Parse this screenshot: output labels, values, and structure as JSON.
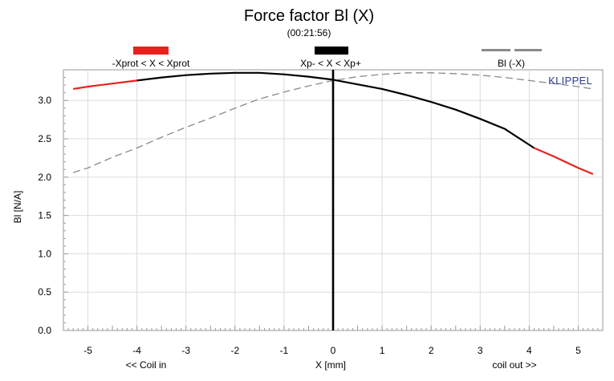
{
  "chart_data": {
    "type": "line",
    "title": "Force factor Bl (X)",
    "subtitle": "(00:21:56)",
    "brand": "KLIPPEL",
    "xlabel": "X [mm]",
    "xlabel_left": "<< Coil in",
    "xlabel_right": "coil out >>",
    "ylabel": "Bl [N/A]",
    "xlim": [
      -5.5,
      5.5
    ],
    "ylim": [
      0.0,
      3.4
    ],
    "xticks": [
      -5,
      -4,
      -3,
      -2,
      -1,
      0,
      1,
      2,
      3,
      4,
      5
    ],
    "yticks": [
      "0.0",
      "0.5",
      "1.0",
      "1.5",
      "2.0",
      "2.5",
      "3.0"
    ],
    "grid": true,
    "legend_position": "top",
    "legend": [
      {
        "label": "-Xprot < X < Xprot",
        "color": "#e8211d",
        "style": "solid"
      },
      {
        "label": "Xp- < X < Xp+",
        "color": "#000000",
        "style": "solid"
      },
      {
        "label": "Bl (-X)",
        "color": "#8a8a8a",
        "style": "dashed"
      }
    ],
    "series": [
      {
        "name": "-Xprot < X < Xprot",
        "color": "#e8211d",
        "style": "solid",
        "segments": [
          {
            "x": [
              -5.3,
              -5.0,
              -4.5,
              -4.0
            ],
            "y": [
              3.15,
              3.18,
              3.22,
              3.26
            ]
          },
          {
            "x": [
              4.1,
              4.5,
              5.0,
              5.3
            ],
            "y": [
              2.38,
              2.27,
              2.12,
              2.04
            ]
          }
        ]
      },
      {
        "name": "Xp- < X < Xp+",
        "color": "#000000",
        "style": "solid",
        "segments": [
          {
            "x": [
              -4.0,
              -3.5,
              -3.0,
              -2.5,
              -2.0,
              -1.5,
              -1.0,
              -0.5,
              0.0,
              0.5,
              1.0,
              1.5,
              2.0,
              2.5,
              3.0,
              3.5,
              4.1
            ],
            "y": [
              3.26,
              3.3,
              3.33,
              3.35,
              3.36,
              3.36,
              3.34,
              3.31,
              3.27,
              3.21,
              3.15,
              3.07,
              2.98,
              2.88,
              2.76,
              2.63,
              2.38
            ]
          }
        ]
      },
      {
        "name": "Bl (-X)",
        "color": "#8a8a8a",
        "style": "dashed",
        "segments": [
          {
            "x": [
              -5.3,
              -5.0,
              -4.5,
              -4.0,
              -3.5,
              -3.0,
              -2.5,
              -2.0,
              -1.5,
              -1.0,
              -0.5,
              0.0,
              0.5,
              1.0,
              1.5,
              2.0,
              2.5,
              3.0,
              3.5,
              4.0,
              4.5,
              5.0,
              5.3
            ],
            "y": [
              2.06,
              2.12,
              2.26,
              2.38,
              2.52,
              2.65,
              2.77,
              2.9,
              3.02,
              3.11,
              3.19,
              3.26,
              3.31,
              3.34,
              3.36,
              3.36,
              3.35,
              3.33,
              3.3,
              3.26,
              3.22,
              3.18,
              3.15
            ]
          }
        ]
      },
      {
        "name": "X = 0",
        "color": "#000000",
        "style": "solid",
        "segments": [
          {
            "x": [
              0,
              0
            ],
            "y": [
              0.0,
              3.4
            ]
          }
        ]
      }
    ]
  }
}
